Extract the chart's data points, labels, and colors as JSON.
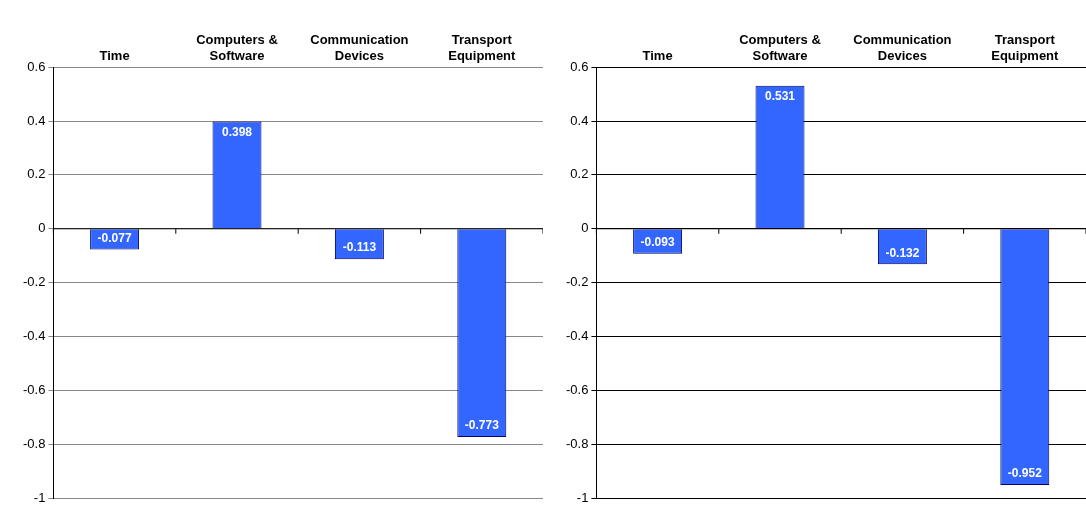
{
  "chart_data": [
    {
      "type": "bar",
      "categories": [
        "Time",
        "Computers & Software",
        "Communication Devices",
        "Transport Equipment"
      ],
      "values": [
        -0.077,
        0.398,
        -0.113,
        -0.773
      ],
      "color": "#3366ff",
      "ylim": [
        -1,
        0.6
      ],
      "yticks": [
        -1,
        -0.8,
        -0.6,
        -0.4,
        -0.2,
        0,
        0.2,
        0.4,
        0.6
      ],
      "grid": "y",
      "data_labels": true
    },
    {
      "type": "bar",
      "categories": [
        "Time",
        "Computers & Software",
        "Communication Devices",
        "Transport Equipment"
      ],
      "values": [
        -0.093,
        0.531,
        -0.132,
        -0.952
      ],
      "color": "#3366ff",
      "ylim": [
        -1,
        0.6
      ],
      "yticks": [
        -1,
        -0.8,
        -0.6,
        -0.4,
        -0.2,
        0,
        0.2,
        0.4,
        0.6
      ],
      "grid": "y",
      "data_labels": true
    }
  ]
}
